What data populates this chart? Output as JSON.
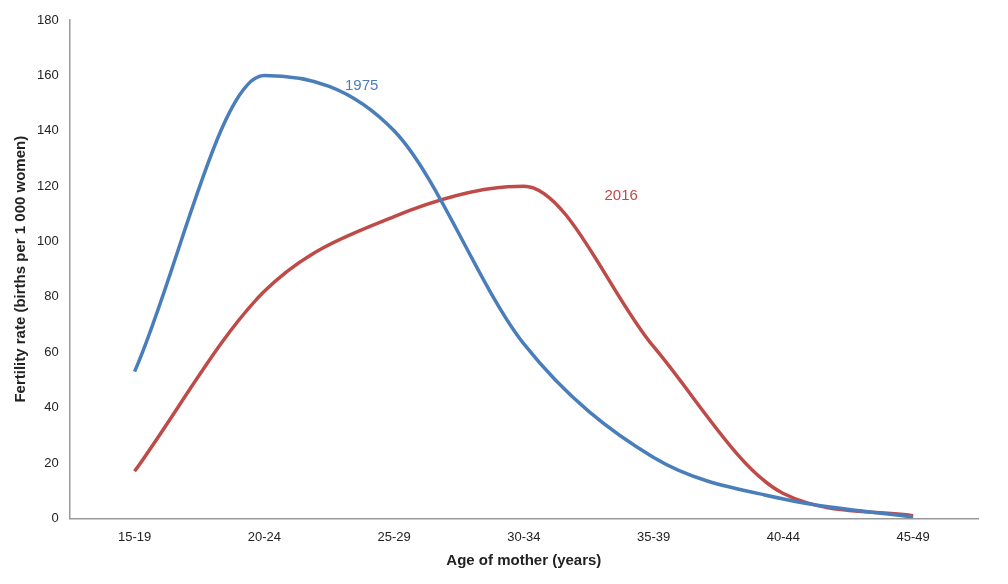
{
  "chart_data": {
    "type": "line",
    "xlabel": "Age of mother (years)",
    "ylabel": "Fertility rate (births per 1 000 women)",
    "categories": [
      "15-19",
      "20-24",
      "25-29",
      "30-34",
      "35-39",
      "40-44",
      "45-49"
    ],
    "series": [
      {
        "name": "1975",
        "color": "#4a7ebb",
        "values": [
          53,
          160,
          140,
          63,
          22,
          7,
          0.5
        ]
      },
      {
        "name": "2016",
        "color": "#be4b48",
        "values": [
          17,
          82,
          109,
          120,
          62,
          9,
          1
        ]
      }
    ],
    "ylim": [
      0,
      180
    ],
    "yticks": [
      0,
      20,
      40,
      60,
      80,
      100,
      120,
      140,
      160,
      180
    ],
    "grid": false,
    "legend": false,
    "marker": "none",
    "line_style": "solid"
  }
}
